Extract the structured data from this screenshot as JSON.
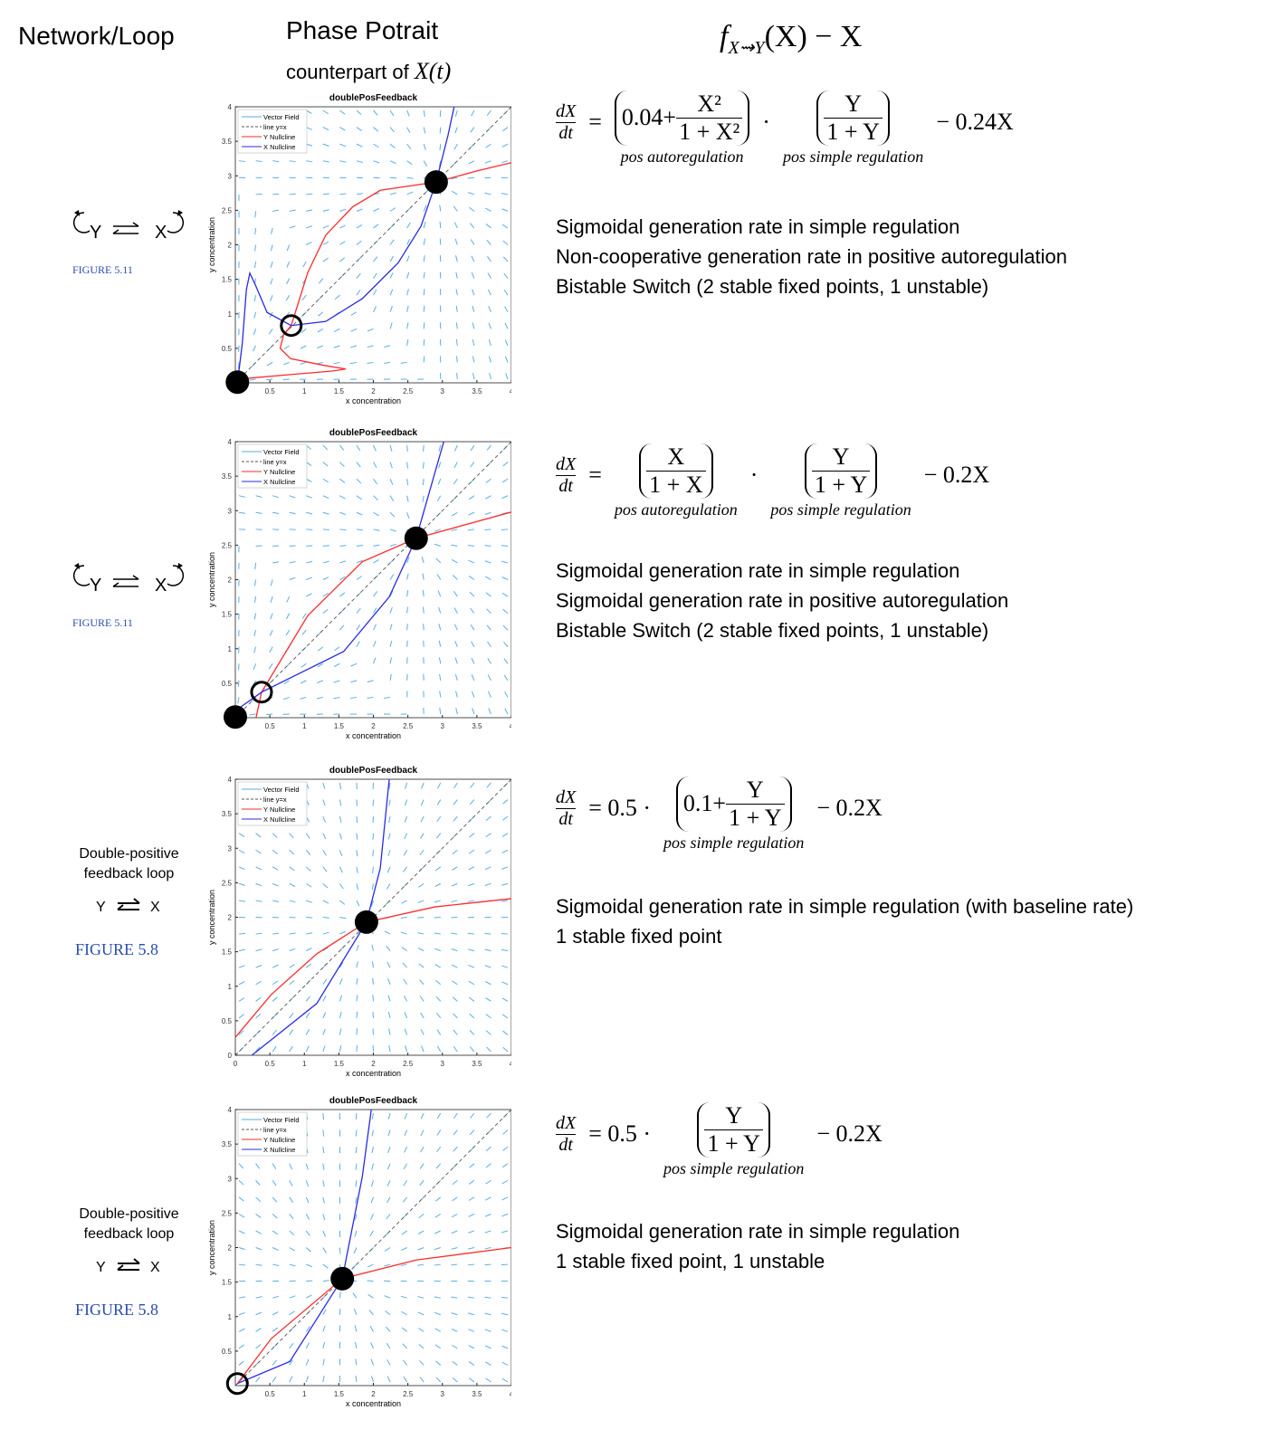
{
  "header": {
    "network": "Network/Loop",
    "phase": "Phase Potrait",
    "counterpart": "counterpart of",
    "counterpart_var": "X(t)",
    "formula_f": "f",
    "formula_sub": "X⇝Y",
    "formula_rest": "(X) − X"
  },
  "plot_style": {
    "vector": "#56aee6",
    "diagonal": "#555555",
    "y_nullcline": "#ff2a2a",
    "x_nullcline": "#2a2ae8"
  },
  "rows": [
    {
      "network": {
        "kind": "autoregulated",
        "y": "Y",
        "x": "X",
        "figure": "FIGURE 5.11"
      },
      "plot": {
        "title": "doublePosFeedback",
        "x_label": "x concentration",
        "y_label": "y concentration",
        "legend": [
          "Vector Field",
          "line y=x",
          "Y Nullcline",
          "X Nullcline"
        ],
        "xlim": [
          0,
          4
        ],
        "ylim": [
          0,
          4
        ],
        "xticks": [
          0.5,
          1,
          1.5,
          2,
          2.5,
          3,
          3.5,
          4
        ],
        "yticks": [
          0.5,
          1,
          1.5,
          2,
          2.5,
          3,
          3.5,
          4
        ],
        "y_nullcline": {
          "x": [
            0,
            0.8,
            1.4,
            1.6,
            1.3,
            0.8,
            0.65,
            0.7,
            0.81,
            1.05,
            1.31,
            1.7,
            2.1,
            2.91,
            3.5,
            4
          ],
          "y": [
            0.05,
            0.12,
            0.17,
            0.2,
            0.25,
            0.35,
            0.5,
            0.7,
            0.83,
            1.6,
            2.14,
            2.55,
            2.79,
            2.91,
            3.07,
            3.19
          ]
        },
        "x_nullcline": {
          "x": [
            0.03,
            0.1,
            0.16,
            0.21,
            0.29,
            0.46,
            0.81,
            1.31,
            1.84,
            2.36,
            2.69,
            2.91,
            3.08,
            3.17
          ],
          "y": [
            0,
            0.56,
            1.35,
            1.59,
            1.42,
            1.02,
            0.83,
            0.89,
            1.22,
            1.74,
            2.27,
            2.91,
            3.58,
            4
          ]
        },
        "fixed_points": [
          {
            "x": 0.03,
            "y": 0.01,
            "stable": true
          },
          {
            "x": 0.81,
            "y": 0.83,
            "stable": false
          },
          {
            "x": 2.91,
            "y": 2.91,
            "stable": true
          }
        ]
      },
      "equation": {
        "lhs": [
          "dX",
          "dt"
        ],
        "tokens": [
          {
            "t": "="
          },
          {
            "paren": [
              {
                "t": "0.04+"
              },
              {
                "frac": [
                  "X²",
                  "1 + X²"
                ]
              }
            ],
            "note": "pos autoregulation"
          },
          {
            "t": "·"
          },
          {
            "paren": [
              {
                "frac": [
                  "Y",
                  "1 + Y"
                ]
              }
            ],
            "note": "pos simple regulation"
          },
          {
            "t": "− 0.24X"
          }
        ]
      },
      "notes": [
        "Sigmoidal generation rate in simple regulation",
        "Non-cooperative generation rate in positive autoregulation",
        "Bistable Switch (2 stable fixed points, 1 unstable)"
      ]
    },
    {
      "network": {
        "kind": "autoregulated",
        "y": "Y",
        "x": "X",
        "figure": "FIGURE 5.11"
      },
      "plot": {
        "title": "doublePosFeedback",
        "x_label": "x concentration",
        "y_label": "y concentration",
        "legend": [
          "Vector Field",
          "line y=x",
          "Y Nullcline",
          "X Nullcline"
        ],
        "xlim": [
          0,
          4
        ],
        "ylim": [
          0,
          4
        ],
        "xticks": [
          0.5,
          1,
          1.5,
          2,
          2.5,
          3,
          3.5,
          4
        ],
        "yticks": [
          0.5,
          1,
          1.5,
          2,
          2.5,
          3,
          3.5,
          4
        ],
        "y_nullcline": {
          "x": [
            0.3,
            0.38,
            1.05,
            1.84,
            2.62,
            4
          ],
          "y": [
            0,
            0.37,
            1.48,
            2.26,
            2.6,
            2.98
          ]
        },
        "x_nullcline": {
          "x": [
            0,
            0.38,
            1.57,
            2.23,
            2.62,
            3.02
          ],
          "y": [
            0.1,
            0.37,
            0.96,
            1.75,
            2.6,
            4
          ]
        },
        "fixed_points": [
          {
            "x": 0,
            "y": 0.01,
            "stable": true
          },
          {
            "x": 0.38,
            "y": 0.37,
            "stable": false
          },
          {
            "x": 2.62,
            "y": 2.6,
            "stable": true
          }
        ]
      },
      "equation": {
        "lhs": [
          "dX",
          "dt"
        ],
        "tokens": [
          {
            "t": "="
          },
          {
            "paren": [
              {
                "frac": [
                  "X",
                  "1 + X"
                ]
              }
            ],
            "note": "pos autoregulation"
          },
          {
            "t": "·"
          },
          {
            "paren": [
              {
                "frac": [
                  "Y",
                  "1 + Y"
                ]
              }
            ],
            "note": "pos simple regulation"
          },
          {
            "t": "− 0.2X"
          }
        ]
      },
      "notes": [
        "Sigmoidal generation rate in simple regulation",
        "Sigmoidal generation rate in positive autoregulation",
        "Bistable Switch (2 stable fixed points, 1 unstable)"
      ]
    },
    {
      "network": {
        "kind": "double",
        "title": "Double-positive feedback loop",
        "y": "Y",
        "x": "X",
        "figure": "FIGURE 5.8"
      },
      "plot": {
        "title": "doublePosFeedback",
        "x_label": "x concentration",
        "y_label": "y concentration",
        "legend": [
          "Vector Field",
          "line y=x",
          "Y Nullcline",
          "X Nullcline"
        ],
        "xlim": [
          0,
          4
        ],
        "ylim": [
          0,
          4
        ],
        "xticks": [
          0,
          0.5,
          1,
          1.5,
          2,
          2.5,
          3,
          3.5,
          4
        ],
        "yticks": [
          0,
          0.5,
          1,
          1.5,
          2,
          2.5,
          3,
          3.5,
          4
        ],
        "y_nullcline": {
          "x": [
            0,
            0.52,
            1.18,
            1.9,
            2.89,
            4
          ],
          "y": [
            0.26,
            0.88,
            1.47,
            1.93,
            2.15,
            2.27
          ]
        },
        "x_nullcline": {
          "x": [
            0.24,
            1.18,
            1.9,
            2.1,
            2.23
          ],
          "y": [
            0,
            0.75,
            1.93,
            2.71,
            4
          ]
        },
        "fixed_points": [
          {
            "x": 1.9,
            "y": 1.93,
            "stable": true
          }
        ]
      },
      "equation": {
        "lhs": [
          "dX",
          "dt"
        ],
        "tokens": [
          {
            "t": "= 0.5 ·"
          },
          {
            "paren": [
              {
                "t": "0.1+"
              },
              {
                "frac": [
                  "Y",
                  "1 + Y"
                ]
              }
            ],
            "note": "pos simple regulation"
          },
          {
            "t": "− 0.2X"
          }
        ]
      },
      "notes": [
        "Sigmoidal generation rate in simple regulation (with baseline rate)",
        "1 stable fixed point"
      ]
    },
    {
      "network": {
        "kind": "double",
        "title": "Double-positive feedback loop",
        "y": "Y",
        "x": "X",
        "figure": "FIGURE 5.8"
      },
      "plot": {
        "title": "doublePosFeedback",
        "x_label": "x concentration",
        "y_label": "y concentration",
        "legend": [
          "Vector Field",
          "line y=x",
          "Y Nullcline",
          "X Nullcline"
        ],
        "xlim": [
          0,
          4
        ],
        "ylim": [
          0,
          4
        ],
        "xticks": [
          0.5,
          1,
          1.5,
          2,
          2.5,
          3,
          3.5,
          4
        ],
        "yticks": [
          0.5,
          1,
          1.5,
          2,
          2.5,
          3,
          3.5,
          4
        ],
        "y_nullcline": {
          "x": [
            0.03,
            0.52,
            1.55,
            2.62,
            4
          ],
          "y": [
            0.03,
            0.68,
            1.55,
            1.82,
            2
          ]
        },
        "x_nullcline": {
          "x": [
            0.03,
            0.79,
            1.55,
            1.84,
            1.97
          ],
          "y": [
            0.03,
            0.35,
            1.55,
            3.03,
            4
          ]
        },
        "fixed_points": [
          {
            "x": 0.03,
            "y": 0.03,
            "stable": false
          },
          {
            "x": 1.55,
            "y": 1.55,
            "stable": true
          }
        ]
      },
      "equation": {
        "lhs": [
          "dX",
          "dt"
        ],
        "tokens": [
          {
            "t": "= 0.5 ·"
          },
          {
            "paren": [
              {
                "frac": [
                  "Y",
                  "1 + Y"
                ]
              }
            ],
            "note": "pos simple regulation"
          },
          {
            "t": "− 0.2X"
          }
        ]
      },
      "notes": [
        "Sigmoidal generation rate in simple regulation",
        "1 stable fixed point, 1 unstable"
      ]
    }
  ]
}
